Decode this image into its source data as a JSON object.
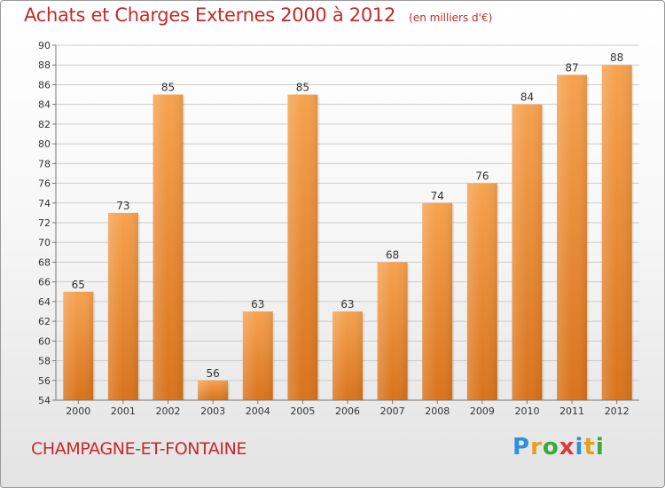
{
  "header": {
    "title": "Achats et Charges Externes 2000 à 2012",
    "unit": "(en milliers d'€)"
  },
  "footer": {
    "commune": "CHAMPAGNE-ET-FONTAINE",
    "logo": "Proxiti",
    "logo_letters": [
      {
        "char": "P",
        "color": "#2f8fd8"
      },
      {
        "char": "r",
        "color": "#e0a020"
      },
      {
        "char": "o",
        "color": "#3aa83a"
      },
      {
        "char": "x",
        "color": "#d83c3c"
      },
      {
        "char": "i",
        "color": "#2f8fd8"
      },
      {
        "char": "t",
        "color": "#e0a020"
      },
      {
        "char": "i",
        "color": "#3aa83a"
      }
    ]
  },
  "colors": {
    "bar_light": "#f6a24f",
    "bar_dark": "#d9731b",
    "title": "#c42a2a",
    "grid": "#cccccc"
  },
  "chart_data": {
    "type": "bar",
    "title": "Achats et Charges Externes 2000 à 2012",
    "subtitle": "(en milliers d'€)",
    "categories": [
      "2000",
      "2001",
      "2002",
      "2003",
      "2004",
      "2005",
      "2006",
      "2007",
      "2008",
      "2009",
      "2010",
      "2011",
      "2012"
    ],
    "values": [
      65,
      73,
      85,
      56,
      63,
      85,
      63,
      68,
      74,
      76,
      84,
      87,
      88
    ],
    "ylim": [
      54,
      90
    ],
    "yticks": [
      54,
      56,
      58,
      60,
      62,
      64,
      66,
      68,
      70,
      72,
      74,
      76,
      78,
      80,
      82,
      84,
      86,
      88,
      90
    ],
    "grid": true,
    "data_labels": true
  }
}
